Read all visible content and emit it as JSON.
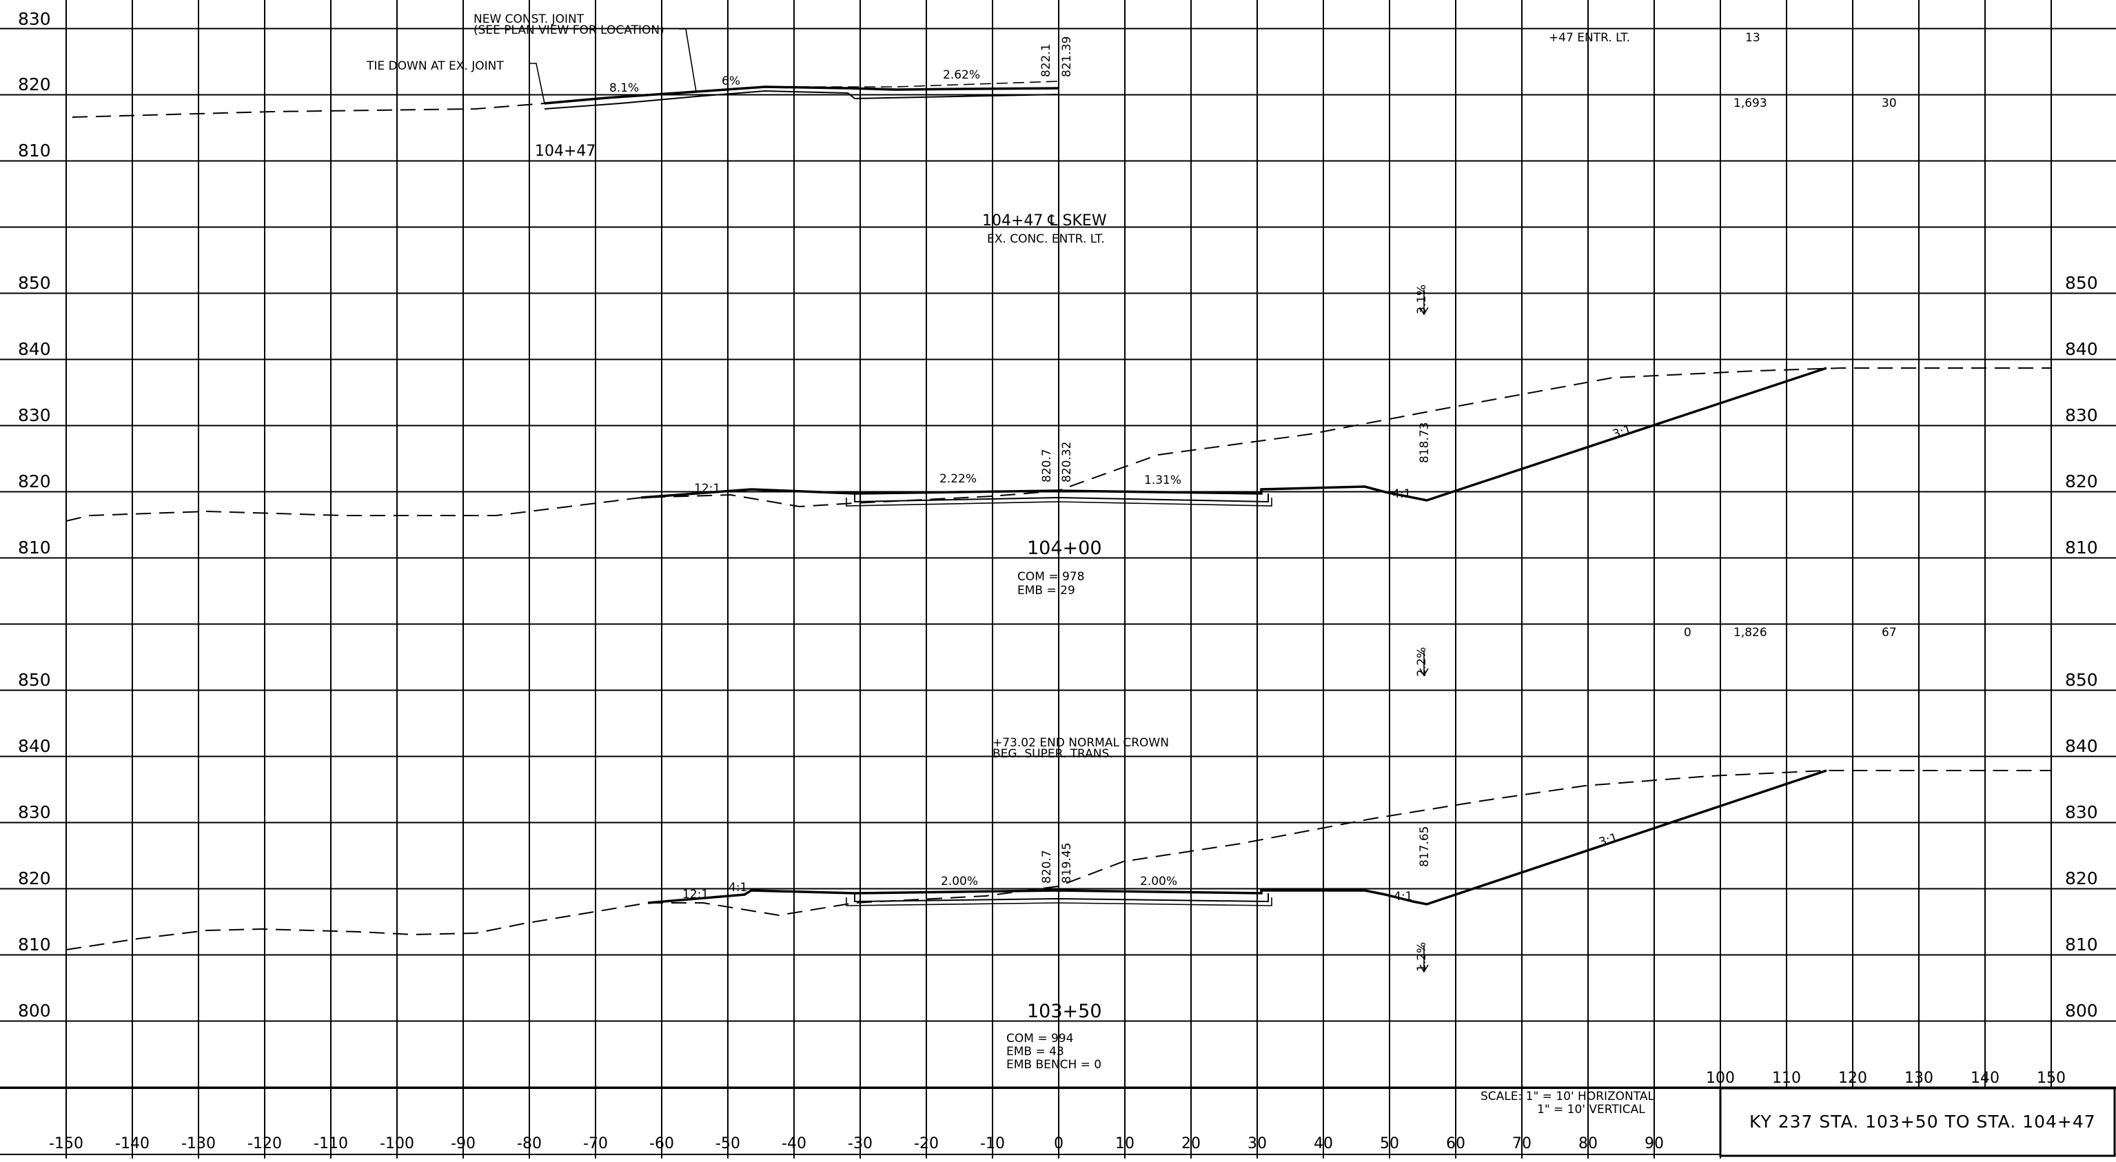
{
  "elevation_labels": {
    "section_1": [
      "830",
      "820",
      "810"
    ],
    "section_2": [
      "850",
      "840",
      "830",
      "820",
      "810"
    ],
    "section_3": [
      "850",
      "840",
      "830",
      "820",
      "810",
      "800"
    ]
  },
  "offset_axis": [
    "-150",
    "-140",
    "-130",
    "-120",
    "-110",
    "-100",
    "-90",
    "-80",
    "-70",
    "-60",
    "-50",
    "-40",
    "-30",
    "-20",
    "-10",
    "0",
    "10",
    "20",
    "30",
    "40",
    "50",
    "60",
    "70",
    "80",
    "90"
  ],
  "offset_axis_right": [
    "100",
    "110",
    "120",
    "130",
    "140",
    "150"
  ],
  "sections": [
    {
      "station": "104+47",
      "annotations": {
        "joint_note_1": "NEW CONST. JOINT",
        "joint_note_2": "(SEE PLAN VIEW FOR LOCATION)",
        "tie_down": "TIE DOWN AT EX. JOINT",
        "slope_a": "8.1%",
        "slope_b": "6%",
        "slope_c": "2.62%",
        "elev_a": "822.1",
        "elev_b": "821.39"
      },
      "table": {
        "entr": "+47 ENTR. LT.",
        "v1": "13",
        "v2": "1,693",
        "v3": "30"
      }
    },
    {
      "station": "104+00",
      "title": "104+47 ℄ SKEW",
      "subtitle": "EX. CONC. ENTR. LT.",
      "annotations": {
        "slope_12": "12:1",
        "slope_a": "2.22%",
        "slope_b": "1.31%",
        "elev_a": "820.7",
        "elev_b": "820.32",
        "slope_4": "4:1",
        "slope_3": "3:1",
        "elev_c": "818.73",
        "super": "3.1%"
      },
      "quantities": {
        "com": "COM = 978",
        "emb": "EMB = 29"
      },
      "table": {
        "v0": "0",
        "v1": "1,826",
        "v2": "67"
      }
    },
    {
      "station": "103+50",
      "annotations": {
        "note_1": "+73.02 END NORMAL CROWN",
        "note_2": "BEG. SUPER. TRANS.",
        "slope_12": "12:1",
        "slope_4a": "4:1",
        "slope_a": "2.00%",
        "slope_b": "2.00%",
        "elev_a": "820.7",
        "elev_b": "819.45",
        "slope_4b": "4:1",
        "slope_3": "3:1",
        "elev_c": "817.65",
        "super_top": "2.2%",
        "super_bot": "1.2%"
      },
      "quantities": {
        "com": "COM = 994",
        "emb": "EMB = 43",
        "bench": "EMB BENCH = 0"
      }
    }
  ],
  "scale": {
    "h": "SCALE: 1\" = 10' HORIZONTAL",
    "v": "1\" = 10' VERTICAL"
  },
  "title_block": "KY 237 STA. 103+50 TO STA. 104+47"
}
